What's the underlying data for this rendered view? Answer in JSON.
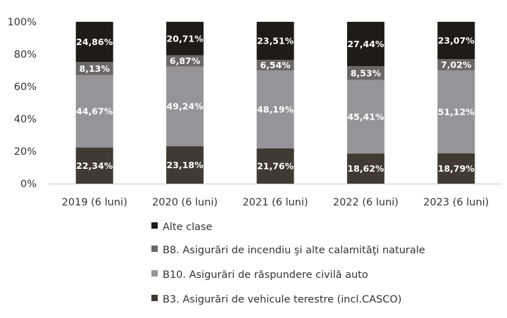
{
  "chart_data": {
    "type": "bar",
    "stacked": true,
    "categories": [
      "2019 (6 luni)",
      "2020 (6 luni)",
      "2021 (6 luni)",
      "2022 (6 luni)",
      "2023 (6 luni)"
    ],
    "yticks": [
      "0%",
      "20%",
      "40%",
      "60%",
      "80%",
      "100%"
    ],
    "ylim": [
      0,
      100
    ],
    "grid": false,
    "legend_position": "bottom",
    "series": [
      {
        "name": "B3. Asigurări de vehicule terestre (incl.CASCO)",
        "color": "#403a32",
        "values": [
          22.34,
          23.18,
          21.76,
          18.62,
          18.79
        ],
        "labels": [
          "22,34%",
          "23,18%",
          "21,76%",
          "18,62%",
          "18,79%"
        ]
      },
      {
        "name": "B10. Asigurări de răspundere civilă auto",
        "color": "#969499",
        "values": [
          44.67,
          49.24,
          48.19,
          45.41,
          51.12
        ],
        "labels": [
          "44,67%",
          "49,24%",
          "48,19%",
          "45,41%",
          "51,12%"
        ]
      },
      {
        "name": "B8. Asigurări de incendiu şi alte calamităţi naturale",
        "color": "#6b6766",
        "values": [
          8.13,
          6.87,
          6.54,
          8.53,
          7.02
        ],
        "labels": [
          "8,13%",
          "6,87%",
          "6,54%",
          "8,53%",
          "7,02%"
        ]
      },
      {
        "name": "Alte clase",
        "color": "#1f1b17",
        "values": [
          24.86,
          20.71,
          23.51,
          27.44,
          23.07
        ],
        "labels": [
          "24,86%",
          "20,71%",
          "23,51%",
          "27,44%",
          "23,07%"
        ]
      }
    ],
    "legend_order": [
      "Alte clase",
      "B8. Asigurări de incendiu şi alte calamităţi naturale",
      "B10. Asigurări de răspundere civilă auto",
      "B3. Asigurări de vehicule terestre (incl.CASCO)"
    ]
  }
}
